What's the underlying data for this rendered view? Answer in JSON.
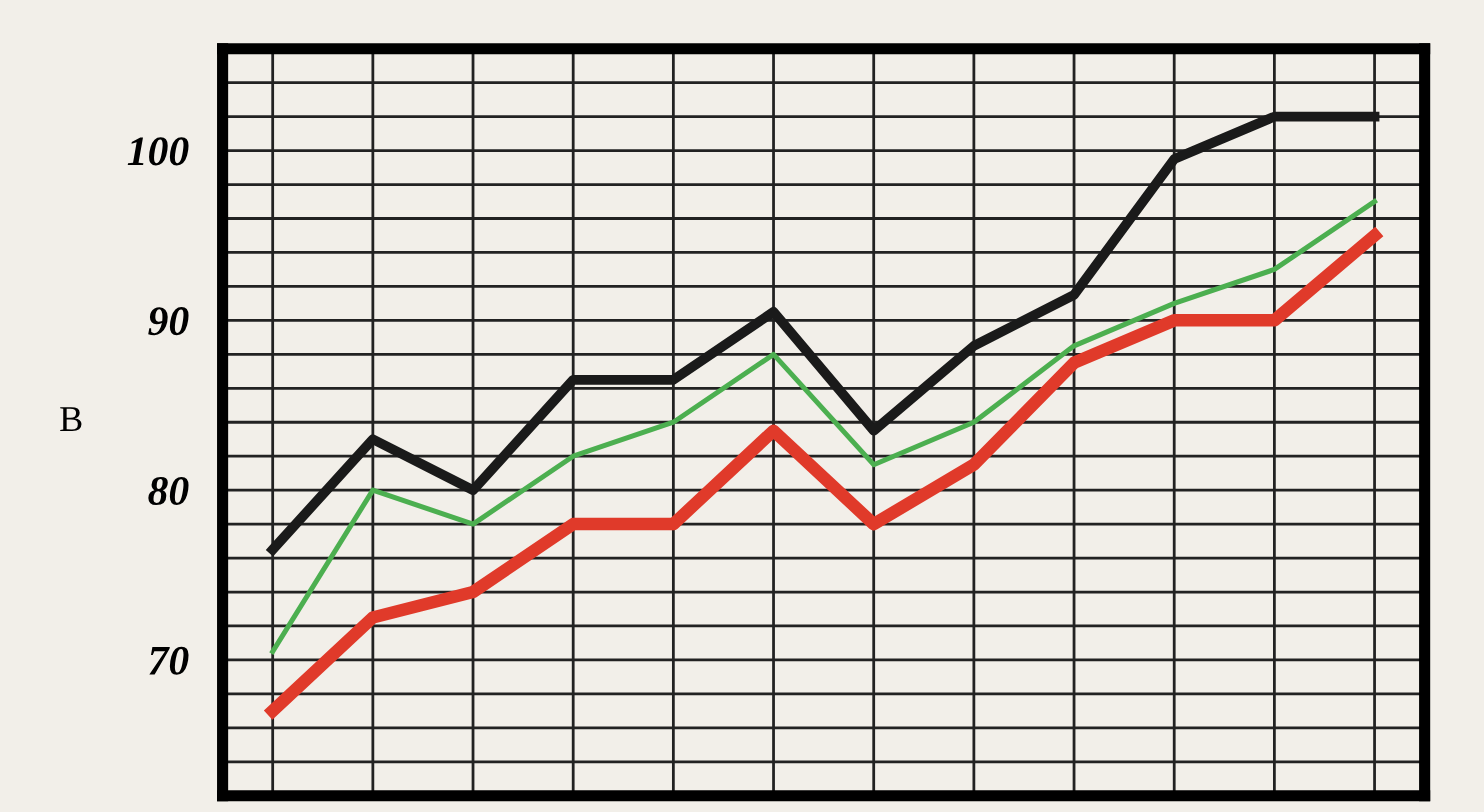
{
  "chart_data": {
    "type": "line",
    "ylabel": "B",
    "categories": [
      null,
      null,
      null,
      null,
      null,
      null,
      null,
      null,
      null,
      null,
      null,
      null
    ],
    "series": [
      {
        "color": "#1a1a1a",
        "values": [
          76.5,
          83,
          80,
          86.5,
          86.5,
          90.5,
          83.5,
          88.5,
          91.5,
          99.5,
          102,
          102
        ]
      },
      {
        "color": "#4caf50",
        "values": [
          70.5,
          80,
          78,
          82,
          84,
          88,
          81.5,
          84,
          88.5,
          91,
          93,
          97
        ]
      },
      {
        "color": "#e03a2a",
        "values": [
          67,
          72.5,
          74,
          78,
          78,
          83.5,
          78,
          81.5,
          87.5,
          90,
          90,
          95
        ]
      }
    ],
    "ylim": [
      62,
      106
    ],
    "yticks": [
      {
        "value": 64,
        "label": null
      },
      {
        "value": 66,
        "label": null
      },
      {
        "value": 68,
        "label": null
      },
      70,
      {
        "value": 72,
        "label": null
      },
      {
        "value": 74,
        "label": null
      },
      {
        "value": 76,
        "label": null
      },
      {
        "value": 78,
        "label": null
      },
      80,
      {
        "value": 82,
        "label": null
      },
      {
        "value": 84,
        "label": null
      },
      {
        "value": 86,
        "label": null
      },
      {
        "value": 88,
        "label": null
      },
      90,
      {
        "value": 92,
        "label": null
      },
      {
        "value": 94,
        "label": null
      },
      {
        "value": 96,
        "label": null
      },
      {
        "value": 98,
        "label": null
      },
      100,
      {
        "value": 102,
        "label": null
      },
      {
        "value": 104,
        "label": null
      }
    ],
    "grid": true,
    "tick_labels": "y",
    "marker": "none",
    "line_style": "solid"
  }
}
